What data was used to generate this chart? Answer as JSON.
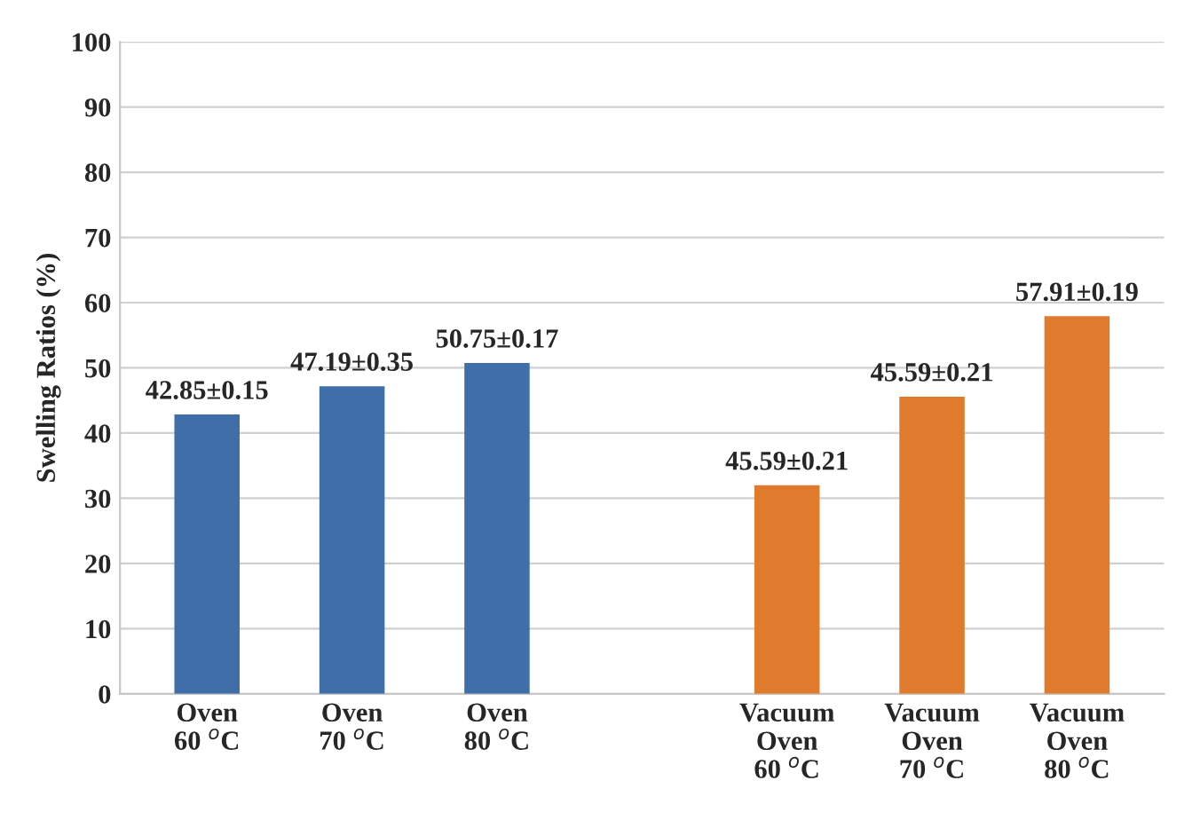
{
  "chart_data": {
    "type": "bar",
    "ylabel": "Swelling Ratios (%)",
    "categories": [
      "Oven\n60 $^{o}$C",
      "Oven\n70 $^{o}$C",
      "Oven\n80 $^{o}$C",
      null,
      "Vacuum\nOven\n60 $^{o}$C",
      "Vacuum\nOven\n70 $^{o}$C",
      "Vacuum\nOven\n80 $^{o}$C"
    ],
    "values": [
      42.85,
      47.19,
      50.75,
      null,
      32,
      45.59,
      57.91
    ],
    "value_labels": [
      "42.85±0.15",
      "47.19±0.35",
      "50.75±0.17",
      null,
      null,
      "45.59±0.21",
      "57.91±0.19"
    ],
    "annotations": [
      {
        "text": "45.59±0.21",
        "x": "Vacuum\nOven\n60 $^{o}$C",
        "y": 32
      }
    ],
    "colors": [
      "#3f6ea8",
      "#3f6ea8",
      "#3f6ea8",
      null,
      "#e07a2c",
      "#e07a2c",
      "#e07a2c"
    ],
    "ylim": [
      0,
      100
    ],
    "yticks": [
      0,
      10,
      20,
      30,
      40,
      50,
      60,
      70,
      80,
      90,
      100
    ],
    "grid": "y"
  }
}
